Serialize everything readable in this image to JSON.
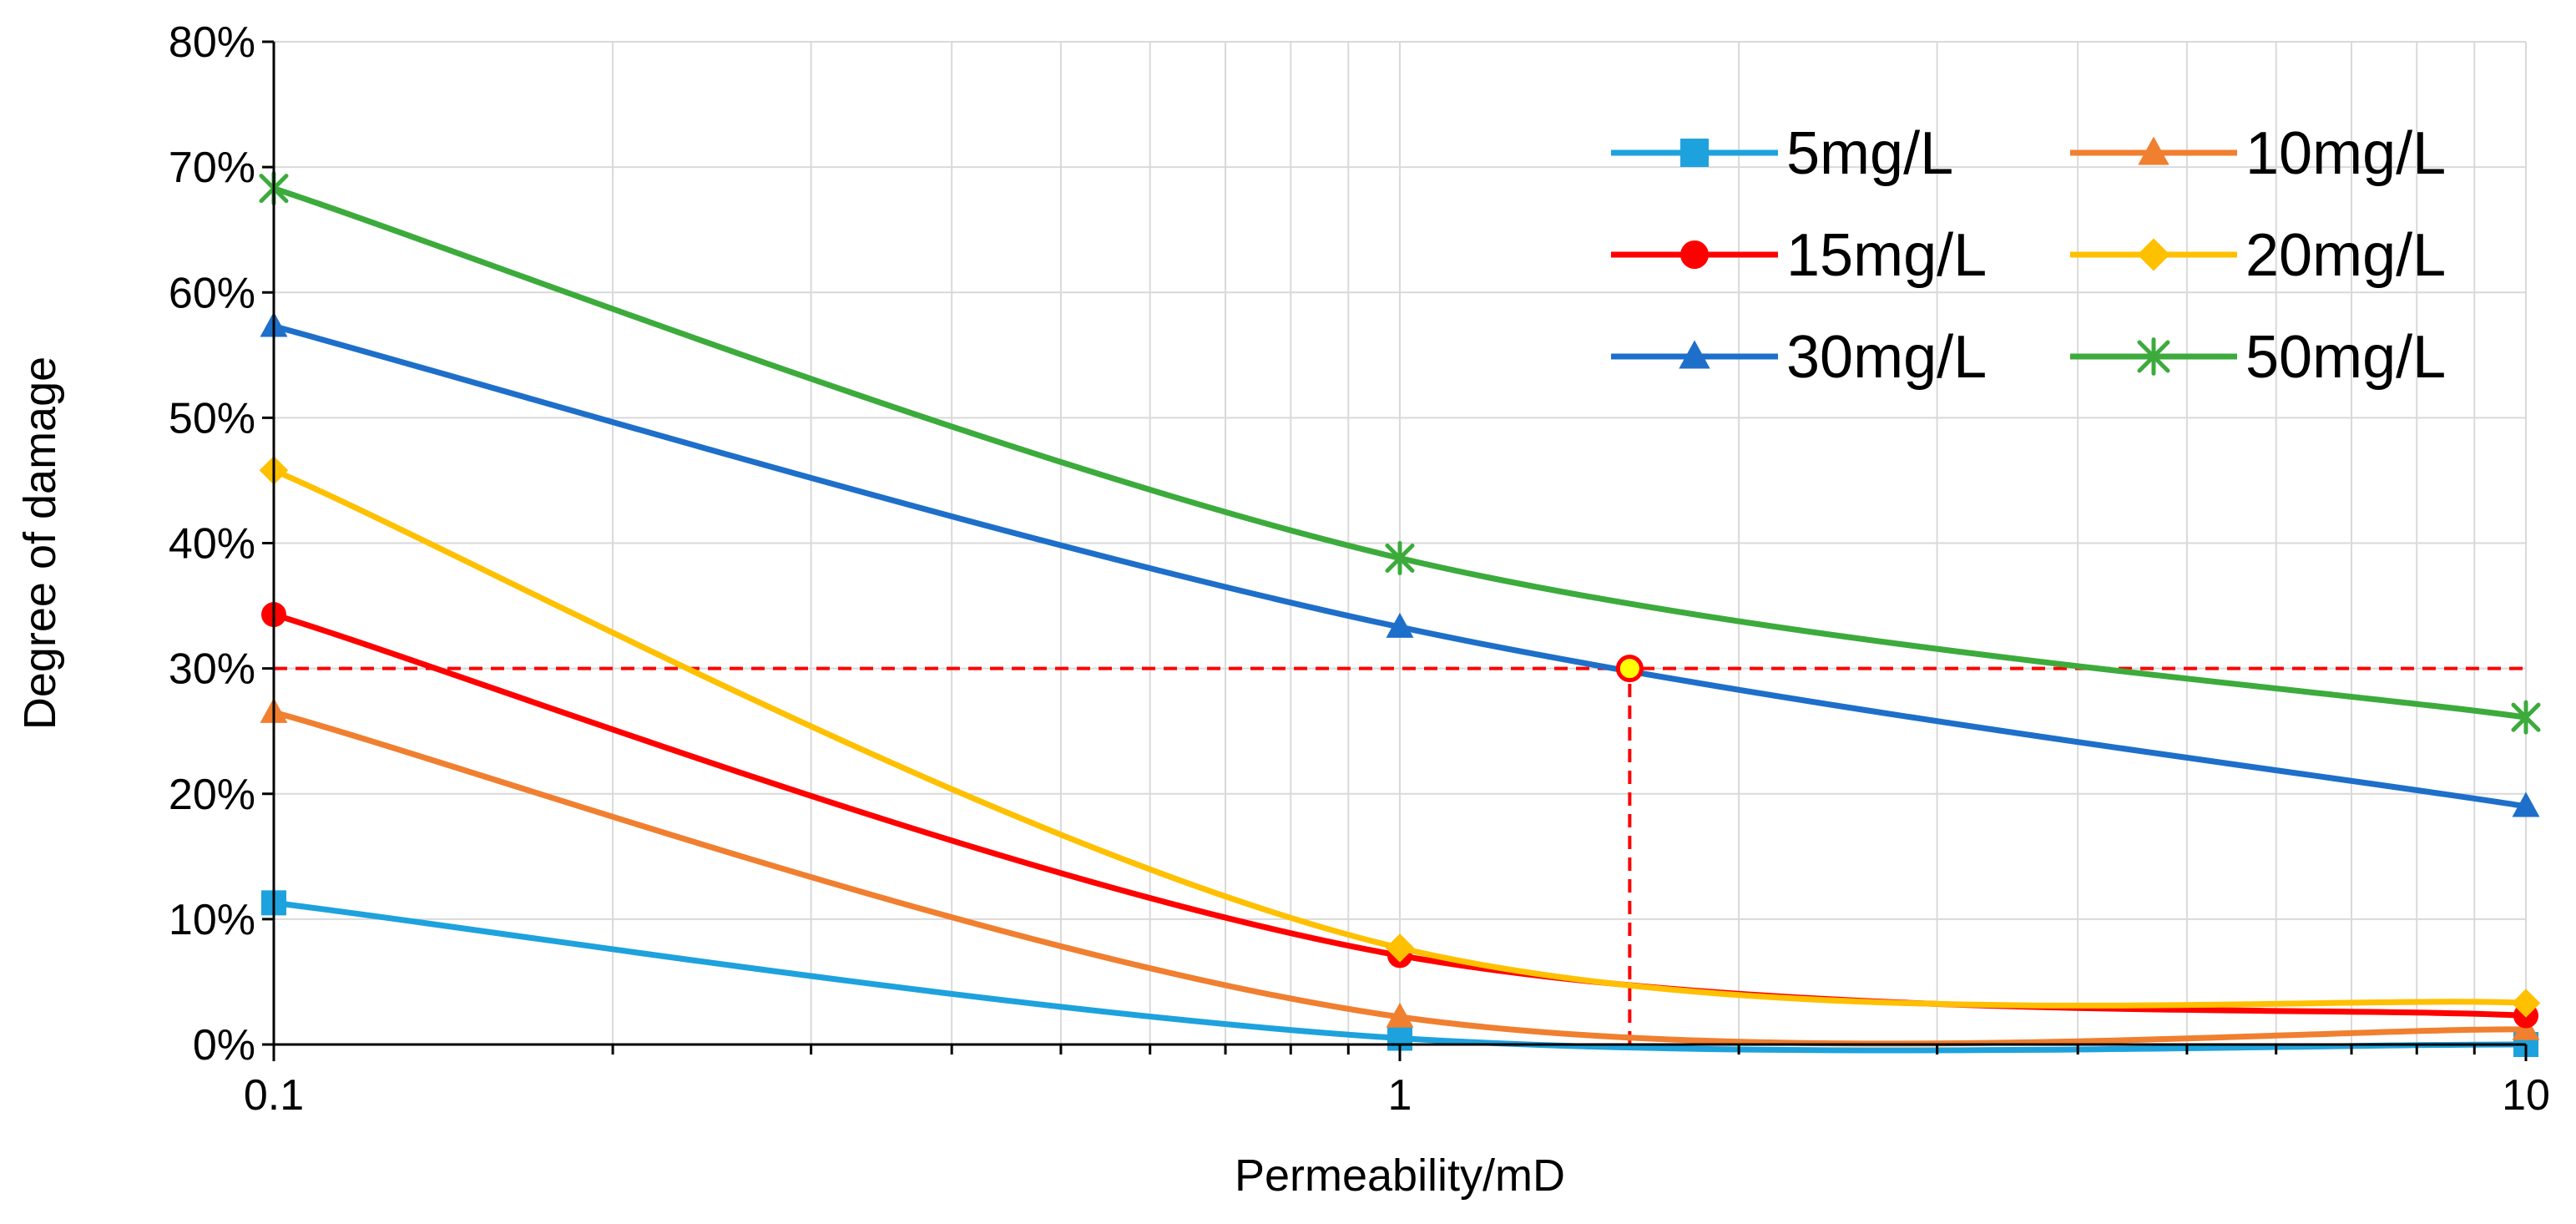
{
  "chart_data": {
    "type": "line",
    "title": "",
    "xlabel": "Permeability/mD",
    "ylabel": "Degree of damage",
    "xscale": "log",
    "xlim": [
      0.1,
      10
    ],
    "ylim": [
      0,
      0.8
    ],
    "x_ticks": [
      {
        "value": 0.1,
        "label": "0.1"
      },
      {
        "value": 1,
        "label": "1"
      },
      {
        "value": 10,
        "label": "10"
      }
    ],
    "y_ticks": [
      {
        "value": 0,
        "label": "0%"
      },
      {
        "value": 0.1,
        "label": "10%"
      },
      {
        "value": 0.2,
        "label": "20%"
      },
      {
        "value": 0.3,
        "label": "30%"
      },
      {
        "value": 0.4,
        "label": "40%"
      },
      {
        "value": 0.5,
        "label": "50%"
      },
      {
        "value": 0.6,
        "label": "60%"
      },
      {
        "value": 0.7,
        "label": "70%"
      },
      {
        "value": 0.8,
        "label": "80%"
      }
    ],
    "grid": true,
    "legend_position": "top-right",
    "x": [
      0.1,
      1,
      10
    ],
    "series": [
      {
        "name": "5mg/L",
        "values": [
          0.113,
          0.005,
          0.0
        ],
        "color": "#1ea2dd",
        "marker": "square"
      },
      {
        "name": "10mg/L",
        "values": [
          0.265,
          0.022,
          0.012
        ],
        "color": "#f07f30",
        "marker": "triangle"
      },
      {
        "name": "15mg/L",
        "values": [
          0.343,
          0.071,
          0.023
        ],
        "color": "#ff0000",
        "marker": "circle"
      },
      {
        "name": "20mg/L",
        "values": [
          0.458,
          0.077,
          0.033
        ],
        "color": "#ffc000",
        "marker": "diamond"
      },
      {
        "name": "30mg/L",
        "values": [
          0.573,
          0.333,
          0.19
        ],
        "color": "#1e6fc9",
        "marker": "triangle"
      },
      {
        "name": "50mg/L",
        "values": [
          0.683,
          0.388,
          0.261
        ],
        "color": "#3cab3c",
        "marker": "star"
      }
    ],
    "annotations": [
      {
        "type": "hline",
        "y": 0.3,
        "x_from": 0.1,
        "x_to": 10,
        "style": "dashed",
        "color": "#ff0000"
      },
      {
        "type": "vline",
        "x": 1.6,
        "y_from": 0,
        "y_to": 0.3,
        "style": "dashed",
        "color": "#ff0000"
      },
      {
        "type": "point",
        "x": 1.6,
        "y": 0.3,
        "fill": "#ffff00",
        "stroke": "#ff0000"
      }
    ]
  }
}
